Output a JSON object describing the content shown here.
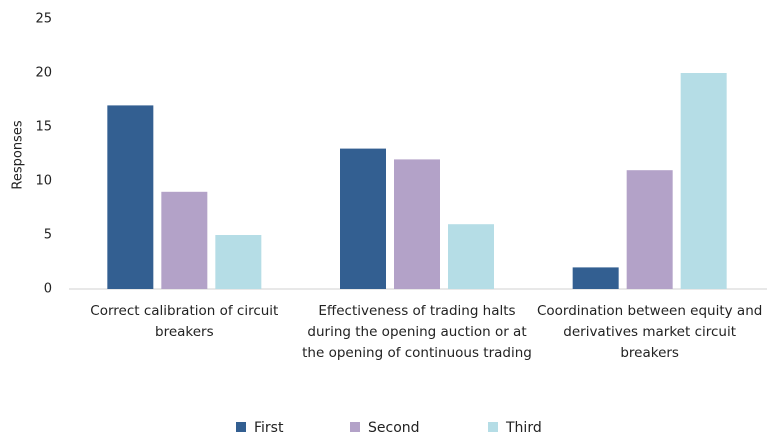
{
  "chart_data": {
    "type": "bar",
    "categories": [
      "Correct calibration of circuit breakers",
      "Effectiveness of trading halts during the opening auction or at the opening of continuous trading",
      "Coordination between equity and derivatives market circuit breakers"
    ],
    "series": [
      {
        "name": "First",
        "color": "#335f91",
        "values": [
          17,
          13,
          2
        ]
      },
      {
        "name": "Second",
        "color": "#b3a2c8",
        "values": [
          9,
          12,
          11
        ]
      },
      {
        "name": "Third",
        "color": "#b5dde6",
        "values": [
          5,
          6,
          20
        ]
      }
    ],
    "y_label": "Responses",
    "ylim": [
      0,
      25
    ],
    "yticks": [
      0,
      5,
      10,
      15,
      20,
      25
    ],
    "grid": false,
    "legend": "bottom"
  }
}
